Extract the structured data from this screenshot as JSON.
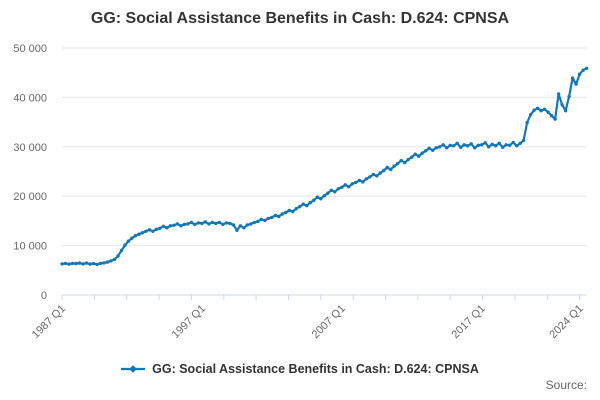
{
  "title": "GG: Social Assistance Benefits in Cash: D.624: CPNSA",
  "source_label": "Source:",
  "legend": {
    "label": "GG: Social Assistance Benefits in Cash: D.624: CPNSA"
  },
  "colors": {
    "line": "#1177b8",
    "grid": "#e6e6e6",
    "axis": "#ccd6eb",
    "title_text": "#333333",
    "tick_text": "#666666",
    "background": "#ffffff"
  },
  "chart_data": {
    "type": "line",
    "title": "GG: Social Assistance Benefits in Cash: D.624: CPNSA",
    "xlabel": "",
    "ylabel": "",
    "x_start": 1987.0,
    "x_end": 2024.5,
    "x_step": 0.25,
    "x_unit": "quarter",
    "x_tick_labels": [
      "1987 Q1",
      "1997 Q1",
      "2007 Q1",
      "2017 Q1",
      "2024 Q1"
    ],
    "x_tick_positions": [
      1987,
      1997,
      2007,
      2017,
      2024
    ],
    "ylim": [
      0,
      50000
    ],
    "y_ticks": [
      0,
      10000,
      20000,
      30000,
      40000,
      50000
    ],
    "y_tick_labels": [
      "0",
      "10 000",
      "20 000",
      "30 000",
      "40 000",
      "50 000"
    ],
    "grid": "horizontal",
    "legend_position": "bottom",
    "markers": true,
    "series": [
      {
        "name": "GG: Social Assistance Benefits in Cash: D.624: CPNSA",
        "values": [
          6300,
          6400,
          6250,
          6400,
          6350,
          6450,
          6300,
          6450,
          6250,
          6350,
          6200,
          6400,
          6500,
          6650,
          6900,
          7200,
          7900,
          9000,
          10100,
          10900,
          11500,
          12000,
          12300,
          12600,
          12900,
          13200,
          12900,
          13300,
          13500,
          13900,
          13600,
          14000,
          14100,
          14400,
          14000,
          14300,
          14400,
          14700,
          14300,
          14600,
          14500,
          14800,
          14400,
          14700,
          14500,
          14700,
          14300,
          14600,
          14500,
          14200,
          13100,
          14000,
          13600,
          14200,
          14400,
          14700,
          14900,
          15300,
          15100,
          15500,
          15700,
          16100,
          15900,
          16400,
          16700,
          17100,
          16900,
          17500,
          17900,
          18400,
          18100,
          18700,
          19200,
          19800,
          19500,
          20100,
          20600,
          21200,
          20900,
          21500,
          21800,
          22300,
          21900,
          22500,
          22800,
          23200,
          22900,
          23500,
          23900,
          24400,
          24100,
          24700,
          25200,
          25800,
          25400,
          26100,
          26600,
          27200,
          26800,
          27400,
          27900,
          28500,
          28100,
          28700,
          29200,
          29700,
          29300,
          29800,
          30000,
          30400,
          29800,
          30300,
          30200,
          30700,
          29900,
          30400,
          30200,
          30600,
          29800,
          30300,
          30400,
          30800,
          30000,
          30500,
          30200,
          30700,
          29900,
          30400,
          30300,
          30900,
          30200,
          30700,
          31300,
          34900,
          36500,
          37400,
          37800,
          37300,
          37600,
          37000,
          36300,
          35600,
          40700,
          38500,
          37300,
          40200,
          43900,
          42700,
          44700,
          45500,
          45900
        ]
      }
    ]
  }
}
